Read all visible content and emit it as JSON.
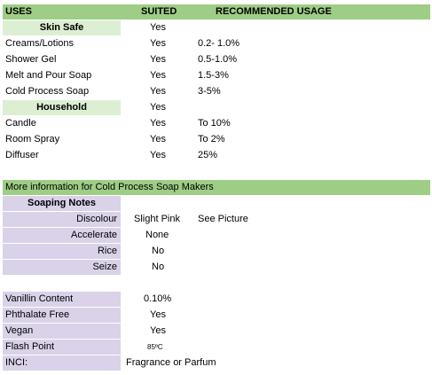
{
  "header": {
    "uses": "USES",
    "suited": "SUITED",
    "recommended": "RECOMMENDED USAGE"
  },
  "skin_safe": {
    "label": "Skin Safe",
    "suited": "Yes",
    "rows": [
      {
        "use": "Creams/Lotions",
        "suited": "Yes",
        "usage": "0.2- 1.0%"
      },
      {
        "use": "Shower Gel",
        "suited": "Yes",
        "usage": "0.5-1.0%"
      },
      {
        "use": "Melt and Pour Soap",
        "suited": "Yes",
        "usage": "1.5-3%"
      },
      {
        "use": "Cold Process Soap",
        "suited": "Yes",
        "usage": "3-5%"
      }
    ]
  },
  "household": {
    "label": "Household",
    "suited": "Yes",
    "rows": [
      {
        "use": "Candle",
        "suited": "Yes",
        "usage": "To 10%"
      },
      {
        "use": "Room Spray",
        "suited": "Yes",
        "usage": "To 2%"
      },
      {
        "use": "Diffuser",
        "suited": "Yes",
        "usage": "25%"
      }
    ]
  },
  "cold_process": {
    "title": "More information for Cold Process Soap Makers",
    "soaping_notes_label": "Soaping Notes",
    "notes": [
      {
        "label": "Discolour",
        "value": "Slight Pink",
        "extra": "See Picture"
      },
      {
        "label": "Accelerate",
        "value": "None",
        "extra": ""
      },
      {
        "label": "Rice",
        "value": "No",
        "extra": ""
      },
      {
        "label": "Seize",
        "value": "No",
        "extra": ""
      }
    ]
  },
  "properties": [
    {
      "label": "Vanillin Content",
      "value": "0.10%"
    },
    {
      "label": "Phthalate Free",
      "value": "Yes"
    },
    {
      "label": "Vegan",
      "value": "Yes"
    },
    {
      "label": "Flash Point",
      "value": "85ºC"
    },
    {
      "label": "INCI:",
      "value": "Fragrance or Parfum"
    }
  ]
}
